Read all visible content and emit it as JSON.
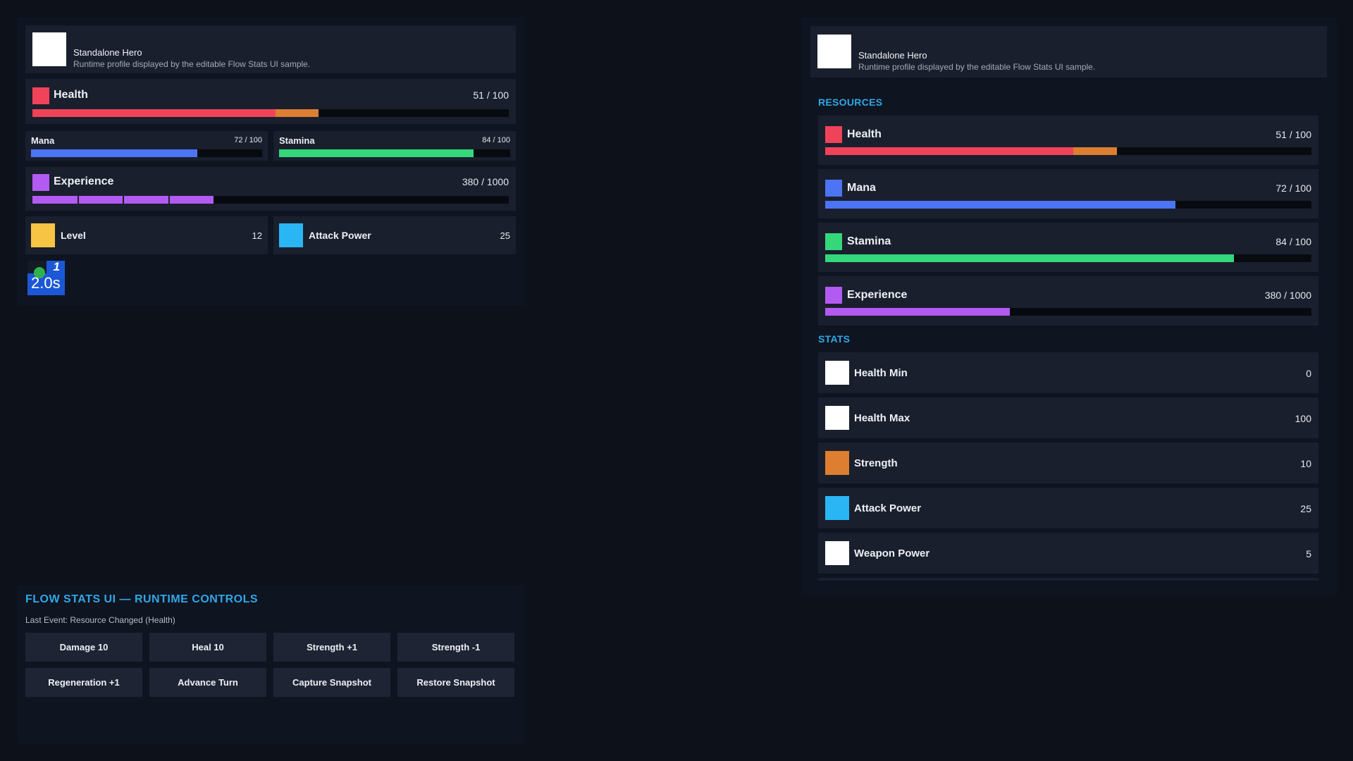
{
  "profile": {
    "name": "Standalone Hero",
    "description": "Runtime profile displayed by the editable Flow Stats UI sample."
  },
  "compact": {
    "health": {
      "label": "Health",
      "value": "51 / 100",
      "fill": 0.51,
      "buff": 0.09
    },
    "mana": {
      "label": "Mana",
      "value": "72 / 100",
      "fill": 0.72
    },
    "stamina": {
      "label": "Stamina",
      "value": "84 / 100",
      "fill": 0.84
    },
    "experience": {
      "label": "Experience",
      "value": "380 / 1000",
      "fill": 0.38,
      "segments": 4
    },
    "level": {
      "label": "Level",
      "value": "12"
    },
    "attack_power": {
      "label": "Attack Power",
      "value": "25"
    }
  },
  "badge": {
    "count": "1",
    "time": "2.0s"
  },
  "detail": {
    "resources_title": "RESOURCES",
    "resources": [
      {
        "label": "Health",
        "value": "51 / 100",
        "fill": 0.51,
        "buff": 0.09,
        "color": "#f0435a"
      },
      {
        "label": "Mana",
        "value": "72 / 100",
        "fill": 0.72,
        "color": "#4d74f4"
      },
      {
        "label": "Stamina",
        "value": "84 / 100",
        "fill": 0.84,
        "color": "#34d87b"
      },
      {
        "label": "Experience",
        "value": "380 / 1000",
        "fill": 0.38,
        "color": "#b35af2"
      }
    ],
    "stats_title": "STATS",
    "stats": [
      {
        "label": "Health Min",
        "value": "0",
        "color": "#ffffff"
      },
      {
        "label": "Health Max",
        "value": "100",
        "color": "#ffffff"
      },
      {
        "label": "Strength",
        "value": "10",
        "color": "#de7e30"
      },
      {
        "label": "Attack Power",
        "value": "25",
        "color": "#2ab6f4"
      },
      {
        "label": "Weapon Power",
        "value": "5",
        "color": "#ffffff"
      }
    ]
  },
  "controls": {
    "title": "FLOW STATS UI — RUNTIME CONTROLS",
    "last_event": "Last Event: Resource Changed (Health)",
    "buttons": [
      "Damage 10",
      "Heal 10",
      "Strength +1",
      "Strength -1",
      "Regeneration +1",
      "Advance Turn",
      "Capture Snapshot",
      "Restore Snapshot"
    ]
  },
  "colors": {
    "health": "#f0435a",
    "health_buff": "#dc7f30",
    "mana": "#4d74f4",
    "stamina": "#34d87b",
    "experience": "#b35af2",
    "level": "#f7c443",
    "attack_power": "#2ab6f4",
    "strength": "#de7e30",
    "accent": "#2fa8e6"
  }
}
